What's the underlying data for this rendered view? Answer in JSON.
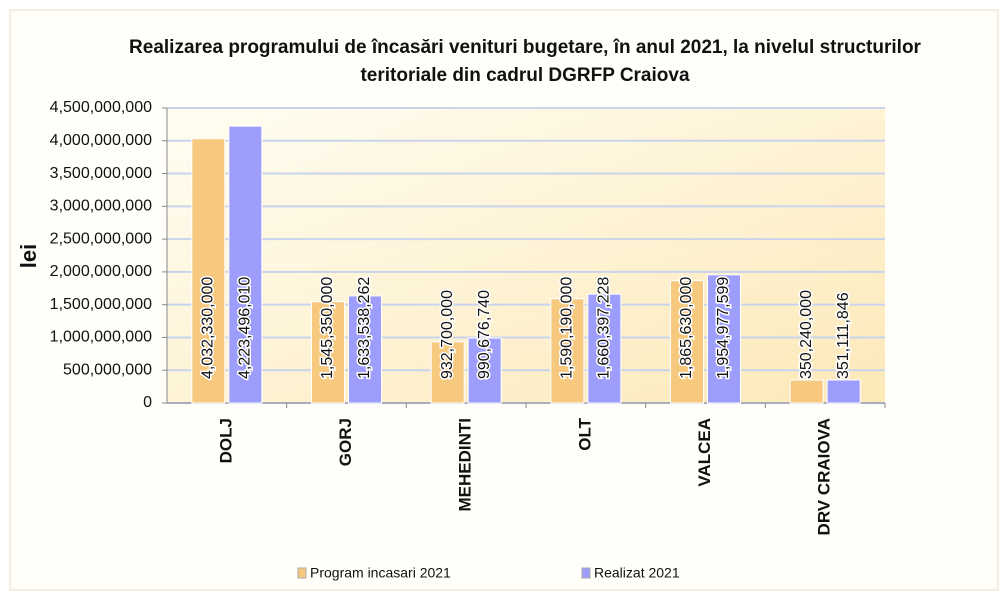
{
  "chart_data": {
    "type": "bar",
    "title": "Realizarea programului de încasări venituri bugetare, în anul 2021, la nivelul structurilor teritoriale din cadrul DGRFP Craiova",
    "y_label": "lei",
    "categories": [
      "DOLJ",
      "GORJ",
      "MEHEDINTI",
      "OLT",
      "VALCEA",
      "DRV CRAIOVA"
    ],
    "series": [
      {
        "name": "Program incasari 2021",
        "color": "#f7c97f",
        "values": [
          4032330000,
          1545350000,
          932700000,
          1590190000,
          1865630000,
          350240000
        ],
        "value_labels": [
          "4,032,330,000",
          "1,545,350,000",
          "932,700,000",
          "1,590,190,000",
          "1,865,630,000",
          "350,240,000"
        ]
      },
      {
        "name": "Realizat 2021",
        "color": "#9d9dfb",
        "values": [
          4223496010,
          1633538262,
          990676740,
          1660397228,
          1954977599,
          351111846
        ],
        "value_labels": [
          "4,223,496,010",
          "1,633,538,262",
          "990,676,740",
          "1,660,397,228",
          "1,954,977,599",
          "351,111,846"
        ]
      }
    ],
    "ylim": [
      0,
      4500000000
    ],
    "yticks": [
      0,
      {
        "value": 500000000,
        "label": "500,000,000"
      },
      {
        "value": 1000000000,
        "label": "1,000,000,000"
      },
      {
        "value": 1500000000,
        "label": "1,500,000,000"
      },
      {
        "value": 2000000000,
        "label": "2,000,000,000"
      },
      {
        "value": 2500000000,
        "label": "2,500,000,000"
      },
      {
        "value": 3000000000,
        "label": "3,000,000,000"
      },
      {
        "value": 3500000000,
        "label": "3,500,000,000"
      },
      {
        "value": 4000000000,
        "label": "4,000,000,000"
      },
      {
        "value": 4500000000,
        "label": "4,500,000,000"
      }
    ],
    "grid": true,
    "legend": "bottom"
  }
}
